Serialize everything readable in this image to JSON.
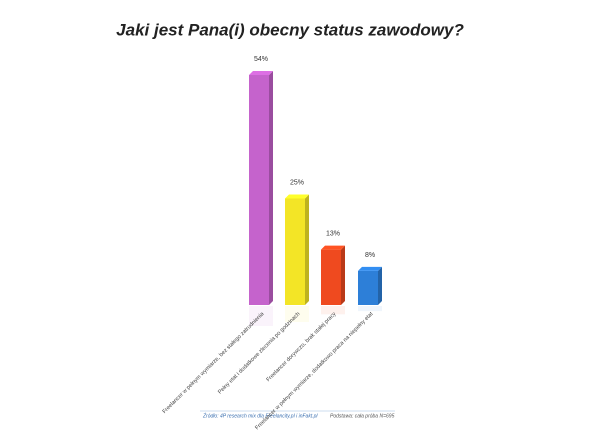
{
  "chart_data": {
    "type": "bar3d",
    "title": "Jaki jest Pana(i) obecny status zawodowy?",
    "categories": [
      "Freelancer w pełnym wymiarze, bez stałego zatrudnienia",
      "Pełny etat i dodatkowe zlecenia po godzinach",
      "Freelancer dorywczo, brak stałej pracy",
      "Freelancer w pełnym wymiarze, dodatkowo praca na niepełny etat"
    ],
    "values": [
      54,
      25,
      13,
      8
    ],
    "value_labels": [
      "54%",
      "25%",
      "13%",
      "8%"
    ],
    "colors": [
      "#c563cc",
      "#f3e526",
      "#ef4a1f",
      "#2d7fd8"
    ],
    "source": "Źródło: 4P research mix dla Freelancity.pl i inFakt.pl",
    "base": "Podstawa: cała próba N=695"
  }
}
